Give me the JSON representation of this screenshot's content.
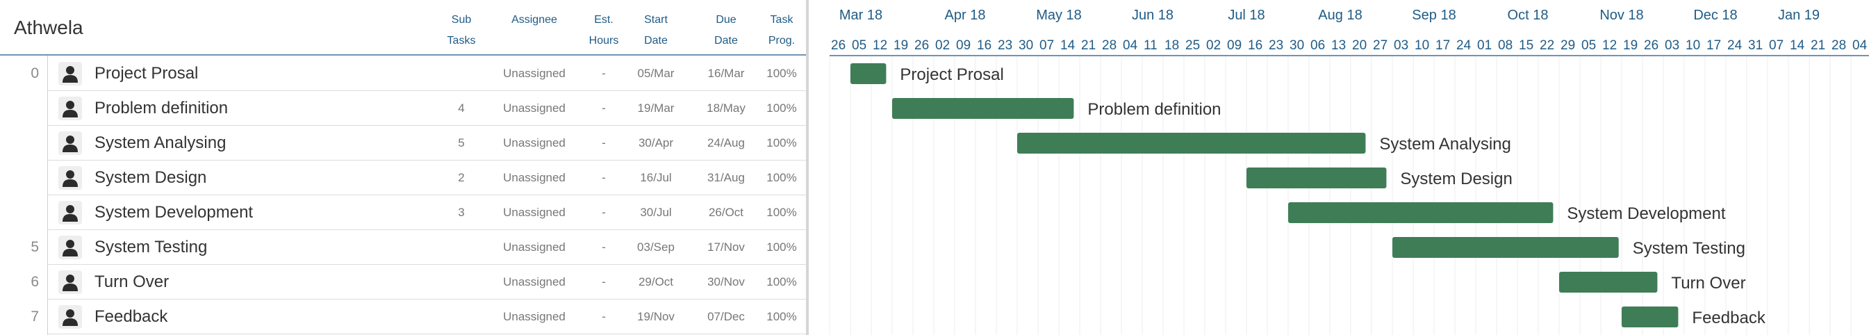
{
  "project": {
    "title": "Athwela"
  },
  "columns": {
    "subtasks": [
      "Sub",
      "Tasks"
    ],
    "assignee": [
      "Assignee"
    ],
    "est_hours": [
      "Est.",
      "Hours"
    ],
    "start_date": [
      "Start",
      "Date"
    ],
    "due_date": [
      "Due",
      "Date"
    ],
    "task_prog": [
      "Task",
      "Prog."
    ]
  },
  "tasks": [
    {
      "num": "0",
      "name": "Project Prosal",
      "subtasks": "",
      "assignee": "Unassigned",
      "est": "-",
      "start": "05/Mar",
      "due": "16/Mar",
      "prog": "100%"
    },
    {
      "num": "",
      "name": "Problem definition",
      "subtasks": "4",
      "assignee": "Unassigned",
      "est": "-",
      "start": "19/Mar",
      "due": "18/May",
      "prog": "100%"
    },
    {
      "num": "",
      "name": "System Analysing",
      "subtasks": "5",
      "assignee": "Unassigned",
      "est": "-",
      "start": "30/Apr",
      "due": "24/Aug",
      "prog": "100%"
    },
    {
      "num": "",
      "name": "System Design",
      "subtasks": "2",
      "assignee": "Unassigned",
      "est": "-",
      "start": "16/Jul",
      "due": "31/Aug",
      "prog": "100%"
    },
    {
      "num": "",
      "name": "System Development",
      "subtasks": "3",
      "assignee": "Unassigned",
      "est": "-",
      "start": "30/Jul",
      "due": "26/Oct",
      "prog": "100%"
    },
    {
      "num": "5",
      "name": "System Testing",
      "subtasks": "",
      "assignee": "Unassigned",
      "est": "-",
      "start": "03/Sep",
      "due": "17/Nov",
      "prog": "100%"
    },
    {
      "num": "6",
      "name": "Turn Over",
      "subtasks": "",
      "assignee": "Unassigned",
      "est": "-",
      "start": "29/Oct",
      "due": "30/Nov",
      "prog": "100%"
    },
    {
      "num": "7",
      "name": "Feedback",
      "subtasks": "",
      "assignee": "Unassigned",
      "est": "-",
      "start": "19/Nov",
      "due": "07/Dec",
      "prog": "100%"
    }
  ],
  "timeline": {
    "months": [
      "Mar 18",
      "Apr 18",
      "May 18",
      "Jun 18",
      "Jul 18",
      "Aug 18",
      "Sep 18",
      "Oct 18",
      "Nov 18",
      "Dec 18",
      "Jan 19"
    ],
    "weeks": [
      "26",
      "05",
      "12",
      "19",
      "26",
      "02",
      "09",
      "16",
      "23",
      "30",
      "07",
      "14",
      "21",
      "28",
      "04",
      "11",
      "18",
      "25",
      "02",
      "09",
      "16",
      "23",
      "30",
      "06",
      "13",
      "20",
      "27",
      "03",
      "10",
      "17",
      "24",
      "01",
      "08",
      "15",
      "22",
      "29",
      "05",
      "12",
      "19",
      "26",
      "03",
      "10",
      "17",
      "24",
      "31",
      "07",
      "14",
      "21",
      "28",
      "04"
    ]
  },
  "colors": {
    "bar": "#3f7d57",
    "header_text": "#1f5b86",
    "header_border": "#6f93b5"
  }
}
